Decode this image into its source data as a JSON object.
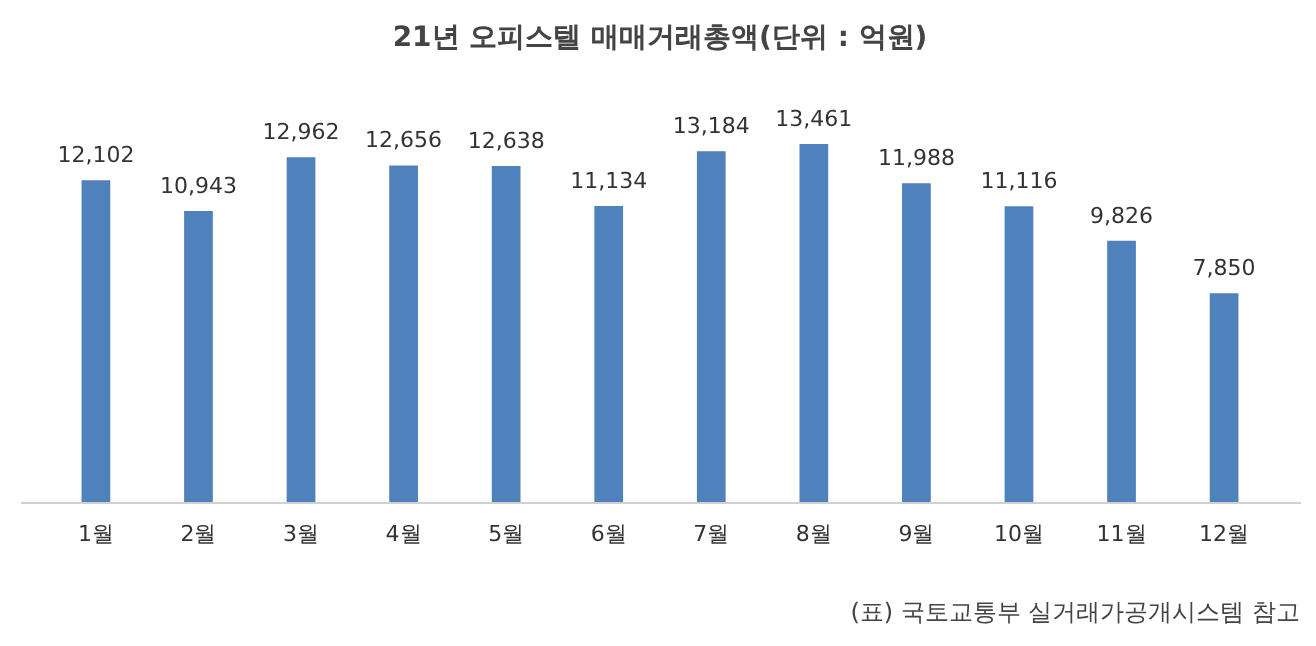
{
  "chart_data": {
    "type": "bar",
    "title": "21년 오피스텔 매매거래총액(단위 : 억원)",
    "categories": [
      "1월",
      "2월",
      "3월",
      "4월",
      "5월",
      "6월",
      "7월",
      "8월",
      "9월",
      "10월",
      "11월",
      "12월"
    ],
    "values": [
      12102,
      10943,
      12962,
      12656,
      12638,
      11134,
      13184,
      13461,
      11988,
      11116,
      9826,
      7850
    ],
    "color": "#4f81bd",
    "grid": false,
    "value_labels": [
      "12,102",
      "10,943",
      "12,962",
      "12,656",
      "12,638",
      "11,134",
      "13,184",
      "13,461",
      "11,988",
      "11,116",
      "9,826",
      "7,850"
    ],
    "annotations": [
      "(표) 국토교통부 실거래가공개시스템 참고"
    ]
  }
}
